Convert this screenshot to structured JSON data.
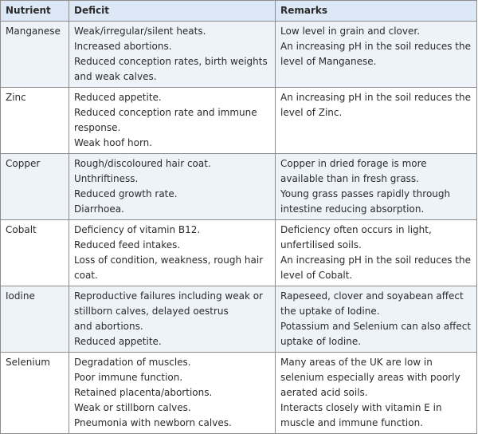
{
  "table": {
    "headers": [
      "Nutrient",
      "Deficit",
      "Remarks"
    ],
    "rows": [
      {
        "nutrient": "Manganese",
        "deficit": [
          "Weak/irregular/silent heats.",
          "Increased abortions.",
          "Reduced conception rates, birth weights and weak calves."
        ],
        "remarks": [
          "Low level in grain and clover.",
          "An increasing pH in the soil reduces the level of Manganese."
        ]
      },
      {
        "nutrient": "Zinc",
        "deficit": [
          "Reduced appetite.",
          "Reduced conception rate and immune response.",
          "Weak hoof horn."
        ],
        "remarks": [
          "An increasing pH in the soil reduces the level of Zinc."
        ]
      },
      {
        "nutrient": "Copper",
        "deficit": [
          "Rough/discoloured hair coat.",
          "Unthriftiness.",
          "Reduced growth rate.",
          "Diarrhoea."
        ],
        "remarks": [
          "Copper in dried forage is more available than in fresh grass.",
          "Young grass passes rapidly through intestine reducing absorption."
        ]
      },
      {
        "nutrient": "Cobalt",
        "deficit": [
          "Deficiency of vitamin B12.",
          "Reduced feed intakes.",
          "Loss of condition, weakness, rough hair coat."
        ],
        "remarks": [
          "Deficiency often occurs in light, unfertilised soils.",
          "An increasing pH in the soil reduces the level of Cobalt."
        ]
      },
      {
        "nutrient": "Iodine",
        "deficit": [
          "Reproductive failures including weak or stillborn calves, delayed oestrus",
          "and abortions.",
          "Reduced appetite."
        ],
        "remarks": [
          "Rapeseed, clover and soyabean affect the uptake of Iodine.",
          "Potassium and Selenium can also affect uptake of Iodine."
        ]
      },
      {
        "nutrient": "Selenium",
        "deficit": [
          "Degradation of muscles.",
          "Poor immune function.",
          "Retained placenta/abortions.",
          "Weak or stillborn calves.",
          "Pneumonia with newborn calves."
        ],
        "remarks": [
          "Many areas of the UK are low in selenium especially areas with poorly aerated acid soils.",
          "Interacts closely with vitamin E in muscle and immune function."
        ]
      }
    ]
  }
}
